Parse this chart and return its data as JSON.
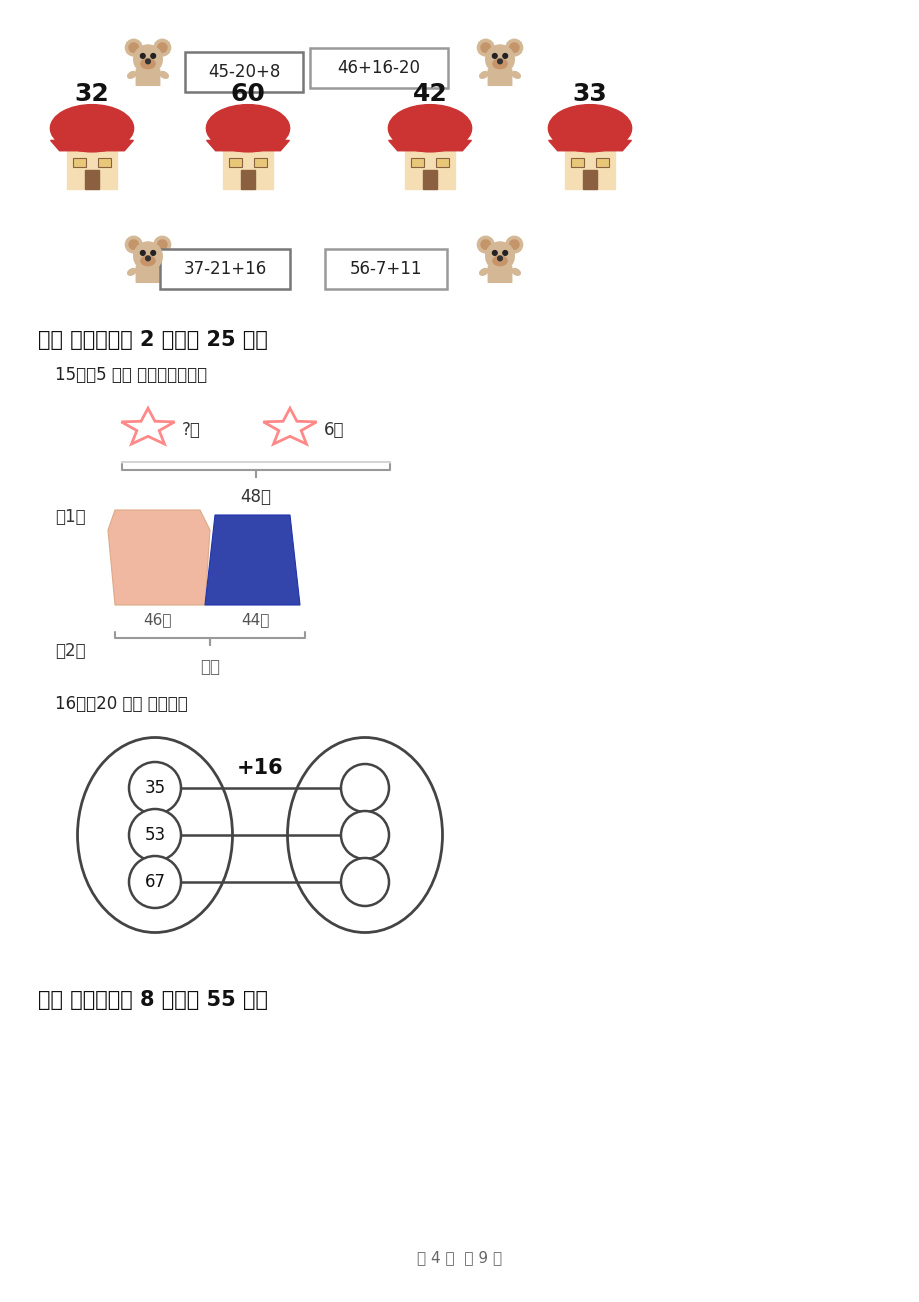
{
  "bg_color": "#ffffff",
  "section5_title": "五、 计算题（共 2 题；共 25 分）",
  "q15_label": "15．（5 分） 看图列式计算。",
  "q15_star_text1": "?个",
  "q15_star_text2": "6个",
  "q15_total": "48个",
  "q15_sub1": "（1）",
  "q15_price1": "46元",
  "q15_price2": "44元",
  "q15_question": "？元",
  "q15_sub2": "（2）",
  "q16_label": "16．（20 分） 算一算．",
  "q16_op": "+16",
  "q16_inputs": [
    "35",
    "53",
    "67"
  ],
  "section6_title": "六、 解答题（共 8 题；共 55 分）",
  "footer": "第 4 页  共 9 页",
  "box1_text": "45-20+8",
  "box2_text": "46+16-20",
  "box3_text": "37-21+16",
  "box4_text": "56-7+11",
  "house_numbers": [
    "32",
    "60",
    "42",
    "33"
  ],
  "bear_color": "#D4B896",
  "ear_inner_color": "#C4956A",
  "snout_color": "#C8956A",
  "house_roof_color": "#CC3333",
  "house_wall_color": "#F5DEB3",
  "house_door_color": "#8B6040",
  "box_edge_color1": "#777777",
  "box_edge_color2": "#999999",
  "text_color": "#222222",
  "gray_text": "#666666",
  "star_color": "#FF8888",
  "brace_color": "#999999"
}
